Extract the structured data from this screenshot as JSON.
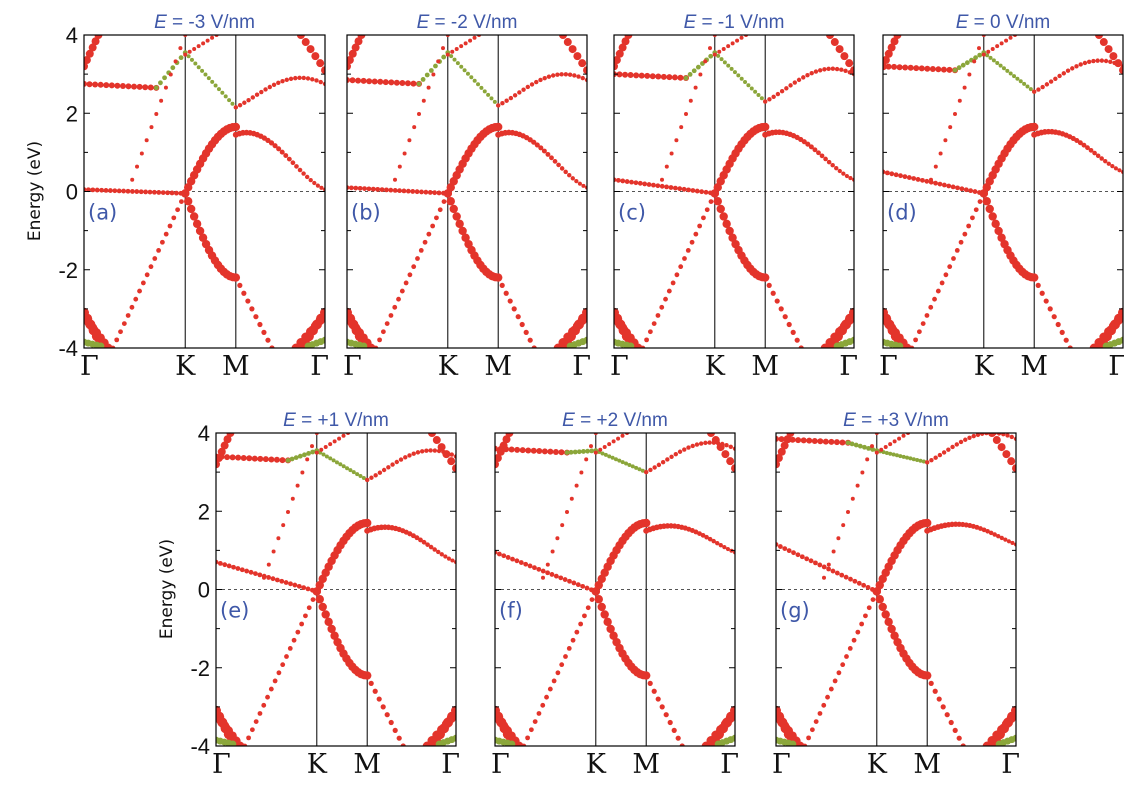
{
  "colors": {
    "band_red": "#E3342B",
    "band_green": "#8BA63A",
    "label_blue": "#3F58A8",
    "axis": "#000000"
  },
  "y_axis_label": "Energy (eV)",
  "chart_data": [
    {
      "type": "scatter",
      "title_var": "E",
      "title_value": " = -3 V/nm",
      "panel_label": "(a)",
      "ylim": [
        -4,
        4
      ],
      "ytick_labels": [
        "4",
        "2",
        "0",
        "-2",
        "-4"
      ],
      "xtick_labels": [
        "Γ",
        "K",
        "M",
        "Γ"
      ],
      "zero_line": "dashed",
      "conduction_gamma_edge": 0.05,
      "k_point_energy": -0.05,
      "upper_gamma_band": 2.75,
      "m_point_energy": 1.65,
      "upper_m_energy": 2.15
    },
    {
      "type": "scatter",
      "title_var": "E",
      "title_value": " = -2 V/nm",
      "panel_label": "(b)",
      "ylim": [
        -4,
        4
      ],
      "ytick_labels": [
        "4",
        "2",
        "0",
        "-2",
        "-4"
      ],
      "xtick_labels": [
        "Γ",
        "K",
        "M",
        "Γ"
      ],
      "zero_line": "dashed",
      "conduction_gamma_edge": 0.1,
      "k_point_energy": -0.05,
      "upper_gamma_band": 2.85,
      "m_point_energy": 1.65,
      "upper_m_energy": 2.2
    },
    {
      "type": "scatter",
      "title_var": "E",
      "title_value": " = -1 V/nm",
      "panel_label": "(c)",
      "ylim": [
        -4,
        4
      ],
      "ytick_labels": [
        "4",
        "2",
        "0",
        "-2",
        "-4"
      ],
      "xtick_labels": [
        "Γ",
        "K",
        "M",
        "Γ"
      ],
      "zero_line": "dashed",
      "conduction_gamma_edge": 0.3,
      "k_point_energy": -0.05,
      "upper_gamma_band": 3.0,
      "m_point_energy": 1.65,
      "upper_m_energy": 2.3
    },
    {
      "type": "scatter",
      "title_var": "E",
      "title_value": " = 0 V/nm",
      "panel_label": "(d)",
      "ylim": [
        -4,
        4
      ],
      "ytick_labels": [
        "4",
        "2",
        "0",
        "-2",
        "-4"
      ],
      "xtick_labels": [
        "Γ",
        "K",
        "M",
        "Γ"
      ],
      "zero_line": "dashed",
      "conduction_gamma_edge": 0.5,
      "k_point_energy": -0.05,
      "upper_gamma_band": 3.2,
      "m_point_energy": 1.65,
      "upper_m_energy": 2.55
    },
    {
      "type": "scatter",
      "title_var": "E",
      "title_value": " = +1 V/nm",
      "panel_label": "(e)",
      "ylim": [
        -4,
        4
      ],
      "ytick_labels": [
        "4",
        "2",
        "0",
        "-2",
        "-4"
      ],
      "xtick_labels": [
        "Γ",
        "K",
        "M",
        "Γ"
      ],
      "zero_line": "dashed",
      "conduction_gamma_edge": 0.7,
      "k_point_energy": -0.05,
      "upper_gamma_band": 3.4,
      "m_point_energy": 1.7,
      "upper_m_energy": 2.8
    },
    {
      "type": "scatter",
      "title_var": "E",
      "title_value": " = +2 V/nm",
      "panel_label": "(f)",
      "ylim": [
        -4,
        4
      ],
      "ytick_labels": [
        "4",
        "2",
        "0",
        "-2",
        "-4"
      ],
      "xtick_labels": [
        "Γ",
        "K",
        "M",
        "Γ"
      ],
      "zero_line": "dashed",
      "conduction_gamma_edge": 0.95,
      "k_point_energy": -0.05,
      "upper_gamma_band": 3.6,
      "m_point_energy": 1.7,
      "upper_m_energy": 3.0
    },
    {
      "type": "scatter",
      "title_var": "E",
      "title_value": " = +3 V/nm",
      "panel_label": "(g)",
      "ylim": [
        -4,
        4
      ],
      "ytick_labels": [
        "4",
        "2",
        "0",
        "-2",
        "-4"
      ],
      "xtick_labels": [
        "Γ",
        "K",
        "M",
        "Γ"
      ],
      "zero_line": "dashed",
      "conduction_gamma_edge": 1.15,
      "k_point_energy": -0.05,
      "upper_gamma_band": 3.85,
      "m_point_energy": 1.7,
      "upper_m_energy": 3.25
    }
  ]
}
